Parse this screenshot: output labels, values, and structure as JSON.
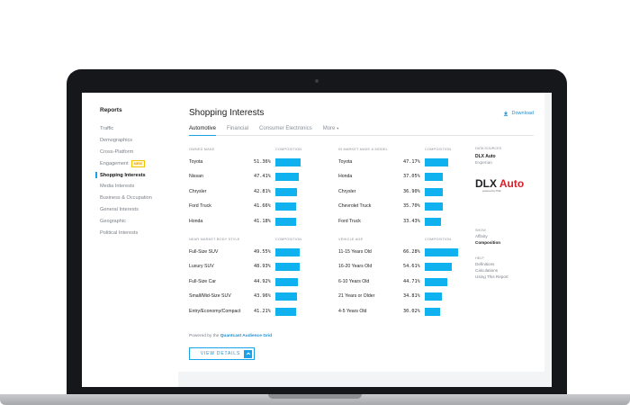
{
  "sidebar": {
    "title": "Reports",
    "items": [
      {
        "label": "Traffic"
      },
      {
        "label": "Demographics"
      },
      {
        "label": "Cross-Platform"
      },
      {
        "label": "Engagement",
        "badge": "NEW"
      },
      {
        "label": "Shopping Interests",
        "active": true
      },
      {
        "label": "Media Interests"
      },
      {
        "label": "Business & Occupation"
      },
      {
        "label": "General Interests"
      },
      {
        "label": "Geographic"
      },
      {
        "label": "Political Interests"
      }
    ]
  },
  "header": {
    "title": "Shopping Interests",
    "download_label": "Download"
  },
  "tabs": [
    "Automotive",
    "Financial",
    "Consumer Electronics",
    "More"
  ],
  "sections": {
    "owned_make": {
      "title": "Owned Make",
      "col": "Composition",
      "rows": [
        {
          "label": "Toyota",
          "pct": "51.36%",
          "value": 51.36
        },
        {
          "label": "Nissan",
          "pct": "47.41%",
          "value": 47.41
        },
        {
          "label": "Chrysler",
          "pct": "42.81%",
          "value": 42.81
        },
        {
          "label": "Ford Truck",
          "pct": "41.66%",
          "value": 41.66
        },
        {
          "label": "Honda",
          "pct": "41.18%",
          "value": 41.18
        }
      ]
    },
    "in_market": {
      "title": "In Market Make & Model",
      "col": "Composition",
      "rows": [
        {
          "label": "Toyota",
          "pct": "47.17%",
          "value": 47.17
        },
        {
          "label": "Honda",
          "pct": "37.05%",
          "value": 37.05
        },
        {
          "label": "Chrysler",
          "pct": "36.90%",
          "value": 36.9
        },
        {
          "label": "Chevrolet Truck",
          "pct": "35.70%",
          "value": 35.7
        },
        {
          "label": "Ford Truck",
          "pct": "33.43%",
          "value": 33.43
        }
      ]
    },
    "body_style": {
      "title": "Near Market Body Style",
      "col": "Composition",
      "rows": [
        {
          "label": "Full-Size SUV",
          "pct": "49.55%",
          "value": 49.55
        },
        {
          "label": "Luxury SUV",
          "pct": "48.93%",
          "value": 48.93
        },
        {
          "label": "Full-Size Car",
          "pct": "44.92%",
          "value": 44.92
        },
        {
          "label": "Small/Mid-Size SUV",
          "pct": "43.96%",
          "value": 43.96
        },
        {
          "label": "Entry/Economy/Compact",
          "pct": "41.21%",
          "value": 41.21
        }
      ]
    },
    "vehicle_age": {
      "title": "Vehicle Age",
      "col": "Composition",
      "rows": [
        {
          "label": "11-15 Years Old",
          "pct": "66.28%",
          "value": 66.28
        },
        {
          "label": "16-20 Years Old",
          "pct": "54.61%",
          "value": 54.61
        },
        {
          "label": "6-10 Years Old",
          "pct": "44.71%",
          "value": 44.71
        },
        {
          "label": "21 Years or Older",
          "pct": "34.81%",
          "value": 34.81
        },
        {
          "label": "4-5 Years Old",
          "pct": "30.02%",
          "value": 30.02
        }
      ]
    }
  },
  "side": {
    "data_sources_head": "Data Sources",
    "source_name": "DLX Auto",
    "source_provider": "Experian",
    "logo_text_dark": "DLX",
    "logo_text_red": "Auto",
    "logo_sub": "powered by Polk",
    "show_head": "Show",
    "show_items": [
      "Affinity",
      "Composition"
    ],
    "help_head": "Help",
    "help_items": [
      "Definitions",
      "Calculations",
      "Using This Report"
    ]
  },
  "footer": {
    "powered_prefix": "Powered by the",
    "powered_link": "Quantcast Audience Grid",
    "button_label": "VIEW DETAILS"
  },
  "colors": {
    "bar": "#0fb2ef",
    "accent": "#1aa3e8",
    "logo_red": "#d5212c"
  }
}
